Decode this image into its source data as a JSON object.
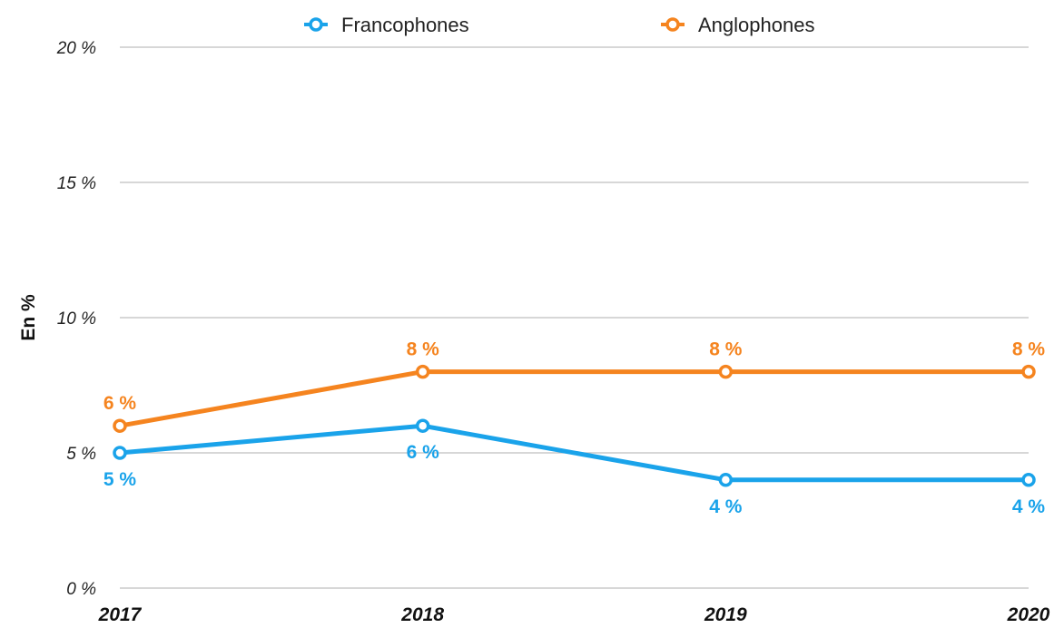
{
  "chart_data": {
    "type": "line",
    "title": "",
    "xlabel": "",
    "ylabel": "En %",
    "categories": [
      "2017",
      "2018",
      "2019",
      "2020"
    ],
    "ylim": [
      0,
      20
    ],
    "yticks": [
      0,
      5,
      10,
      15,
      20
    ],
    "ytick_labels": [
      "0 %",
      "5 %",
      "10 %",
      "15 %",
      "20 %"
    ],
    "grid": "horizontal",
    "legend_position": "top",
    "series": [
      {
        "name": "Francophones",
        "color": "#1aa3ea",
        "values": [
          5,
          6,
          4,
          4
        ],
        "labels": [
          "5 %",
          "6 %",
          "4 %",
          "4 %"
        ],
        "label_position": "below"
      },
      {
        "name": "Anglophones",
        "color": "#f5841f",
        "values": [
          6,
          8,
          8,
          8
        ],
        "labels": [
          "6 %",
          "8 %",
          "8 %",
          "8 %"
        ],
        "label_position": "above"
      }
    ]
  }
}
